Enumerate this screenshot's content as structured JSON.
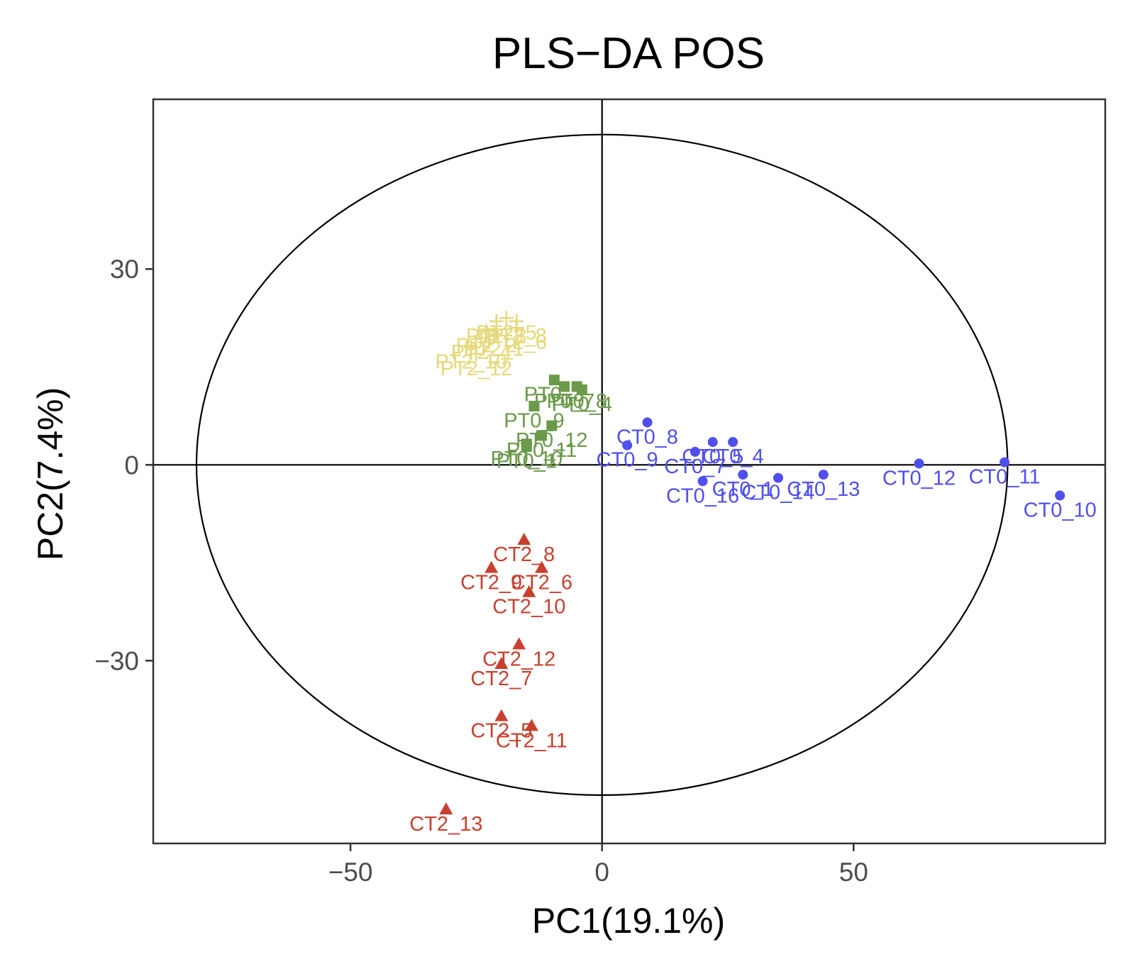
{
  "chart_data": {
    "type": "scatter",
    "title": "PLS−DA POS",
    "xlabel": "PC1(19.1%)",
    "ylabel": "PC2(7.4%)",
    "xlim": [
      -89.2,
      100
    ],
    "ylim": [
      -58,
      56
    ],
    "xticks": [
      {
        "value": -50,
        "label": "−50"
      },
      {
        "value": 0,
        "label": "0"
      },
      {
        "value": 50,
        "label": "50"
      }
    ],
    "yticks": [
      {
        "value": 30,
        "label": "30"
      },
      {
        "value": 0,
        "label": "0"
      },
      {
        "value": -30,
        "label": "−30"
      }
    ],
    "ellipse": {
      "center": [
        0,
        0
      ],
      "rx": 80.6,
      "ry": 50.6
    },
    "reference_lines": {
      "x": 0,
      "y": 0
    },
    "series": [
      {
        "name": "CT0",
        "color": "#4f4ff0",
        "shape": "circle",
        "points": [
          {
            "label": "CT0_8",
            "x": 9,
            "y": 6.5
          },
          {
            "label": "CT0_9",
            "x": 5,
            "y": 3
          },
          {
            "label": "CT0_5",
            "x": 22,
            "y": 3.5
          },
          {
            "label": "CT0_4",
            "x": 26,
            "y": 3.5
          },
          {
            "label": "CT0_7",
            "x": 18.5,
            "y": 2
          },
          {
            "label": "CT0_16",
            "x": 20,
            "y": -2.5
          },
          {
            "label": "CT0_1",
            "x": 28,
            "y": -1.5
          },
          {
            "label": "CT0_14",
            "x": 35,
            "y": -2
          },
          {
            "label": "CT0_13",
            "x": 44,
            "y": -1.5
          },
          {
            "label": "CT0_12",
            "x": 63,
            "y": 0.2
          },
          {
            "label": "CT0_11",
            "x": 80,
            "y": 0.4
          },
          {
            "label": "CT0_10",
            "x": 91,
            "y": -4.7
          }
        ]
      },
      {
        "name": "CT2",
        "color": "#c9402e",
        "shape": "triangle",
        "points": [
          {
            "label": "CT2_8",
            "x": -15.5,
            "y": -11.5
          },
          {
            "label": "CT2_9",
            "x": -22,
            "y": -15.8
          },
          {
            "label": "CT2_6",
            "x": -12,
            "y": -15.8
          },
          {
            "label": "CT2_10",
            "x": -14.5,
            "y": -19.5
          },
          {
            "label": "CT2_12",
            "x": -16.5,
            "y": -27.5
          },
          {
            "label": "CT2_7",
            "x": -20,
            "y": -30.5
          },
          {
            "label": "CT2_5",
            "x": -20,
            "y": -38.5
          },
          {
            "label": "CT2_11",
            "x": -14,
            "y": -40
          },
          {
            "label": "CT2_13",
            "x": -31,
            "y": -52.8
          }
        ]
      },
      {
        "name": "PT0",
        "color": "#6a9a4a",
        "shape": "square",
        "points": [
          {
            "label": "PT0_3",
            "x": -9.5,
            "y": 13
          },
          {
            "label": "PT0_7",
            "x": -7.5,
            "y": 12
          },
          {
            "label": "PT0_8",
            "x": -5,
            "y": 12
          },
          {
            "label": "PT0_4",
            "x": -4,
            "y": 11.5
          },
          {
            "label": "PT0_9",
            "x": -13.5,
            "y": 9
          },
          {
            "label": "PT0_12",
            "x": -10,
            "y": 6
          },
          {
            "label": "PT0_11",
            "x": -12,
            "y": 4.5
          },
          {
            "label": "PT0_1",
            "x": -15,
            "y": 2.8
          },
          {
            "label": "PT0_10",
            "x": -15,
            "y": 3.2
          }
        ]
      },
      {
        "name": "PT2",
        "color": "#e6d97a",
        "shape": "plus",
        "points": [
          {
            "label": "PT2_3",
            "x": -21,
            "y": 22
          },
          {
            "label": "PT2_5",
            "x": -19,
            "y": 22.5
          },
          {
            "label": "PT2_8",
            "x": -17,
            "y": 22
          },
          {
            "label": "PT2_6",
            "x": -17,
            "y": 21
          },
          {
            "label": "PT2_2",
            "x": -23,
            "y": 20.5
          },
          {
            "label": "PT2_4",
            "x": -24,
            "y": 19.5
          },
          {
            "label": "PT2_1",
            "x": -21.5,
            "y": 20
          },
          {
            "label": "PT2_10",
            "x": -26,
            "y": 18
          },
          {
            "label": "PT2_12",
            "x": -25,
            "y": 17
          }
        ]
      }
    ]
  }
}
